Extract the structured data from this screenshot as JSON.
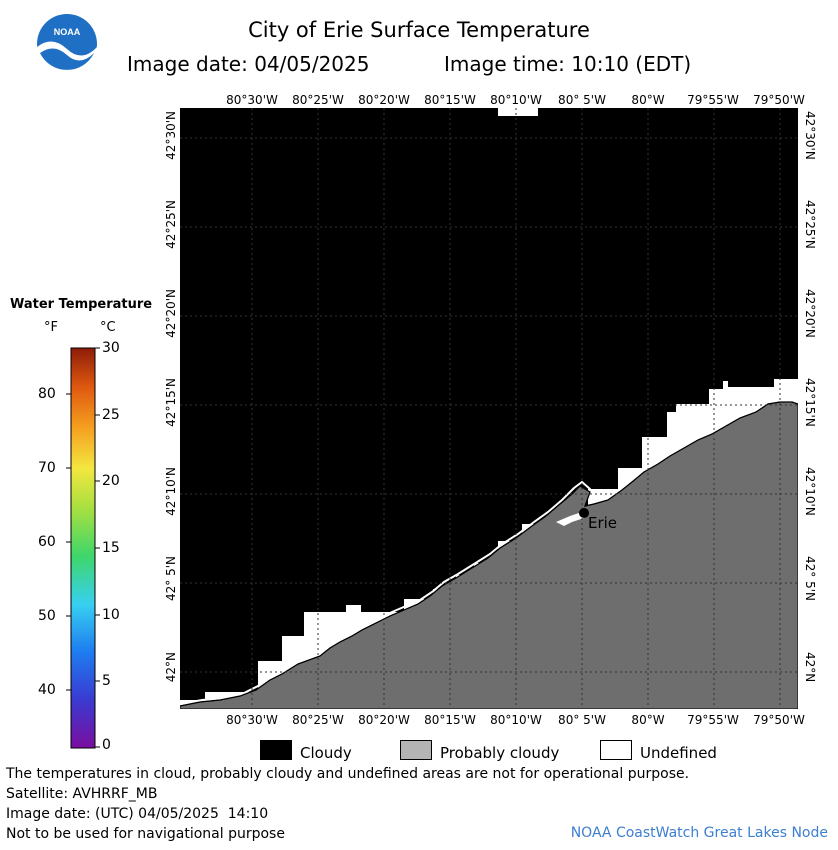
{
  "title": "City of Erie Surface Temperature",
  "image_date_label": "Image date: 04/05/2025",
  "image_time_label": "Image time: 10:10 (EDT)",
  "logo": {
    "icon": "noaa-logo",
    "text": "NOAA"
  },
  "lon_labels": [
    "80°30'W",
    "80°25'W",
    "80°20'W",
    "80°15'W",
    "80°10'W",
    "80° 5'W",
    "80°W",
    "79°55'W",
    "79°50'W"
  ],
  "lon_labels_top_5th": "80° 5'W",
  "lat_labels": [
    "42°30'N",
    "42°25'N",
    "42°20'N",
    "42°15'N",
    "42°10'N",
    "42° 5'N",
    "42°N"
  ],
  "city": {
    "name": "Erie"
  },
  "legend": {
    "title": "Water Temperature",
    "unit_f": "°F",
    "unit_c": "°C",
    "f_ticks": [
      "80",
      "70",
      "60",
      "50",
      "40"
    ],
    "c_ticks": [
      "30",
      "25",
      "20",
      "15",
      "10",
      "5",
      "0"
    ],
    "range_c": [
      0,
      30
    ]
  },
  "key": [
    {
      "label": "Cloudy",
      "color": "#000000"
    },
    {
      "label": "Probably cloudy",
      "color": "#b4b4b4"
    },
    {
      "label": "Undefined",
      "color": "#ffffff"
    }
  ],
  "land_color": "#6e6e6e",
  "footer": {
    "line1": "The temperatures in cloud, probably cloudy and undefined areas are not for operational purpose.",
    "line2": "Satellite: AVHRRF_MB",
    "line3": "Image date: (UTC) 04/05/2025  14:10",
    "line4": "Not to be used for navigational purpose",
    "credit": "NOAA CoastWatch Great Lakes Node"
  }
}
